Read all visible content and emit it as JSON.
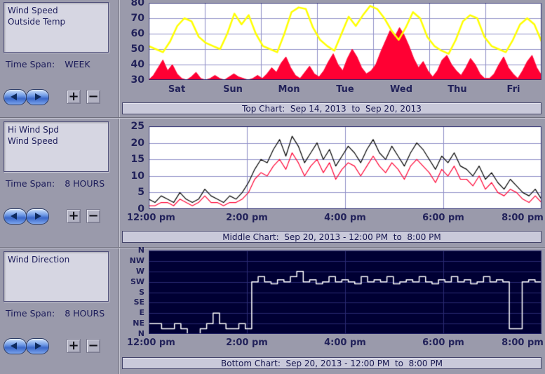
{
  "colors": {
    "accent_navy": "#22225a",
    "background": "#9a9aab",
    "caption_bg": "#c9c9da",
    "red": "#ff0033",
    "yellow": "#ffff00",
    "black": "#000000",
    "white": "#ffffff"
  },
  "buttons": {
    "plus": "+",
    "minus": "−"
  },
  "sidebar": {
    "sections": [
      {
        "series": [
          "Wind Speed",
          "Outside Temp"
        ],
        "time_span_label": "Time Span:",
        "time_span": "WEEK"
      },
      {
        "series": [
          "Hi Wind Spd",
          "Wind Speed"
        ],
        "time_span_label": "Time Span:",
        "time_span": "8 HOURS"
      },
      {
        "series": [
          "Wind Direction"
        ],
        "time_span_label": "Time Span:",
        "time_span": "8 HOURS"
      }
    ]
  },
  "captions": {
    "top": "Top Chart:  Sep 14, 2013  to  Sep 20, 2013",
    "middle": "Middle Chart:  Sep 20, 2013 - 12:00 PM  to  8:00 PM",
    "bottom": "Bottom Chart:  Sep 20, 2013 - 12:00 PM  to  8:00 PM"
  },
  "chart_data": [
    {
      "type": "line",
      "title": "Top Chart: Sep 14, 2013 to Sep 20, 2013",
      "bg": "#ffffff",
      "grid_color": "#9090c8",
      "border": "#2a2a6e",
      "ylim": [
        30,
        80
      ],
      "ytick_labels": [
        "80",
        "70",
        "60",
        "50",
        "40",
        "30"
      ],
      "x_divisions": 7,
      "x_label_mode": "center",
      "x_labels": [
        "Sat",
        "Sun",
        "Mon",
        "Tue",
        "Wed",
        "Thu",
        "Fri"
      ],
      "series": [
        {
          "name": "Wind Speed",
          "color": "#ff0033",
          "fill": true,
          "width": 1,
          "values": [
            30,
            33,
            38,
            43,
            36,
            40,
            34,
            31,
            30,
            32,
            35,
            31,
            30,
            31,
            33,
            31,
            30,
            32,
            34,
            32,
            31,
            30,
            31,
            33,
            31,
            34,
            38,
            35,
            41,
            45,
            38,
            33,
            31,
            35,
            39,
            34,
            32,
            36,
            42,
            47,
            40,
            36,
            44,
            50,
            45,
            38,
            34,
            36,
            40,
            48,
            55,
            62,
            58,
            64,
            59,
            52,
            44,
            38,
            42,
            36,
            32,
            36,
            43,
            46,
            40,
            36,
            33,
            38,
            44,
            40,
            34,
            31,
            31,
            34,
            40,
            45,
            38,
            34,
            31,
            36,
            42,
            46,
            38,
            33
          ]
        },
        {
          "name": "Outside Temp",
          "color": "#ffff00",
          "width": 2.5,
          "values": [
            52,
            50,
            48,
            55,
            65,
            70,
            68,
            58,
            54,
            52,
            50,
            60,
            73,
            66,
            72,
            60,
            52,
            50,
            48,
            60,
            74,
            77,
            76,
            64,
            56,
            52,
            49,
            60,
            71,
            65,
            72,
            78,
            76,
            70,
            62,
            56,
            64,
            74,
            70,
            58,
            52,
            49,
            47,
            56,
            68,
            72,
            70,
            58,
            52,
            50,
            48,
            56,
            66,
            70,
            66,
            55
          ]
        }
      ]
    },
    {
      "type": "line",
      "title": "Middle Chart: Sep 20, 2013 - 12:00 PM to 8:00 PM",
      "bg": "#ffffff",
      "grid_color": "#9090c8",
      "border": "#2a2a6e",
      "ylim": [
        0,
        25
      ],
      "ytick_labels": [
        "25",
        "20",
        "15",
        "10",
        "5",
        "0"
      ],
      "x_divisions": 4,
      "x_label_mode": "tick",
      "x_labels": [
        "12:00 pm",
        "2:00 pm",
        "4:00 pm",
        "6:00 pm",
        "8:00 pm"
      ],
      "series": [
        {
          "name": "Wind Speed",
          "color": "#ff0033",
          "width": 1.2,
          "values": [
            1,
            1,
            2,
            2,
            1,
            3,
            2,
            1,
            2,
            4,
            2,
            2,
            1,
            2,
            2,
            3,
            5,
            9,
            11,
            10,
            13,
            15,
            12,
            17,
            14,
            10,
            13,
            15,
            11,
            14,
            9,
            12,
            14,
            13,
            10,
            13,
            16,
            13,
            11,
            14,
            12,
            9,
            13,
            15,
            13,
            11,
            8,
            12,
            10,
            13,
            9,
            9,
            7,
            10,
            6,
            8,
            5,
            4,
            6,
            5,
            3,
            2,
            4,
            2
          ]
        },
        {
          "name": "Hi Wind Spd",
          "color": "#000000",
          "width": 1.2,
          "values": [
            3,
            2,
            4,
            3,
            2,
            5,
            3,
            2,
            3,
            6,
            4,
            3,
            2,
            4,
            3,
            5,
            8,
            12,
            15,
            14,
            18,
            21,
            16,
            22,
            19,
            14,
            17,
            20,
            15,
            18,
            13,
            16,
            19,
            17,
            14,
            18,
            21,
            17,
            15,
            19,
            16,
            13,
            17,
            20,
            18,
            15,
            12,
            16,
            14,
            17,
            13,
            12,
            10,
            13,
            9,
            11,
            8,
            6,
            9,
            7,
            5,
            4,
            6,
            3
          ]
        }
      ]
    },
    {
      "type": "line",
      "title": "Bottom Chart: Sep 20, 2013 - 12:00 PM to 8:00 PM",
      "bg": "#000033",
      "grid_color": "#2a2a72",
      "border": "#2a2a6e",
      "ylim": [
        0,
        8
      ],
      "ytick_labels": [
        "N",
        "NW",
        "W",
        "SW",
        "S",
        "SE",
        "E",
        "NE",
        "N"
      ],
      "x_divisions": 4,
      "x_label_mode": "tick",
      "x_labels": [
        "12:00 pm",
        "2:00 pm",
        "4:00 pm",
        "6:00 pm",
        "8:00 pm"
      ],
      "series": [
        {
          "name": "Wind Direction",
          "color": "#ffffff",
          "width": 1.5,
          "step": true,
          "values": [
            1,
            1,
            0.5,
            0.5,
            1,
            0.5,
            0,
            0,
            0.5,
            1,
            2,
            1,
            0.5,
            0.5,
            1,
            0.5,
            5,
            5.5,
            5,
            4.8,
            5.2,
            5,
            5.5,
            6,
            5,
            5.2,
            4.8,
            5,
            5.5,
            5,
            5.2,
            5,
            4.8,
            5.5,
            5,
            5.2,
            5,
            5.5,
            4.8,
            5,
            5.2,
            5,
            5.5,
            5,
            4.8,
            5.2,
            5,
            5.5,
            5,
            5.2,
            4.8,
            5,
            5.5,
            5,
            5.2,
            5,
            0.5,
            0.5,
            5,
            5.2,
            5,
            5
          ]
        }
      ]
    }
  ]
}
